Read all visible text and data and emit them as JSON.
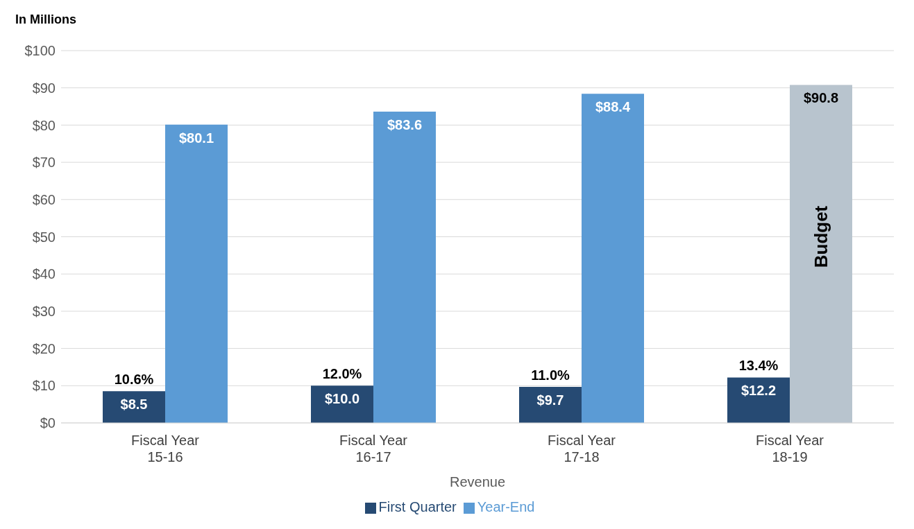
{
  "chart_data": {
    "type": "bar",
    "title": "In Millions",
    "xlabel": "Revenue",
    "categories": [
      "Fiscal Year\n15-16",
      "Fiscal Year\n16-17",
      "Fiscal Year\n17-18",
      "Fiscal Year\n18-19"
    ],
    "series": [
      {
        "name": "First Quarter",
        "color": "#264a73",
        "values": [
          8.5,
          10.0,
          9.7,
          12.2
        ],
        "value_labels": [
          "$8.5",
          "$10.0",
          "$9.7",
          "$12.2"
        ]
      },
      {
        "name": "Year-End",
        "color": "#5b9bd5",
        "colors": [
          "#5b9bd5",
          "#5b9bd5",
          "#5b9bd5",
          "#b8c4ce"
        ],
        "values": [
          80.1,
          83.6,
          88.4,
          90.8
        ],
        "value_labels": [
          "$80.1",
          "$83.6",
          "$88.4",
          "$90.8"
        ]
      }
    ],
    "ylim": [
      0,
      100
    ],
    "yticks": [
      {
        "value": 0,
        "label": "$0"
      },
      {
        "value": 10,
        "label": "$10"
      },
      {
        "value": 20,
        "label": "$20"
      },
      {
        "value": 30,
        "label": "$30"
      },
      {
        "value": 40,
        "label": "$40"
      },
      {
        "value": 50,
        "label": "$50"
      },
      {
        "value": 60,
        "label": "$60"
      },
      {
        "value": 70,
        "label": "$70"
      },
      {
        "value": 80,
        "label": "$80"
      },
      {
        "value": 90,
        "label": "$90"
      },
      {
        "value": 100,
        "label": "$100"
      }
    ],
    "grid": "y",
    "legend": "bottom",
    "annotations": [
      {
        "text": "10.6%",
        "x": "Fiscal Year\n15-16",
        "y": 8.5
      },
      {
        "text": "12.0%",
        "x": "Fiscal Year\n16-17",
        "y": 10.0
      },
      {
        "text": "11.0%",
        "x": "Fiscal Year\n17-18",
        "y": 9.7
      },
      {
        "text": "13.4%",
        "x": "Fiscal Year\n18-19",
        "y": 12.2
      },
      {
        "text": "Budget",
        "x": "Fiscal Year\n18-19",
        "y": 50
      }
    ]
  }
}
